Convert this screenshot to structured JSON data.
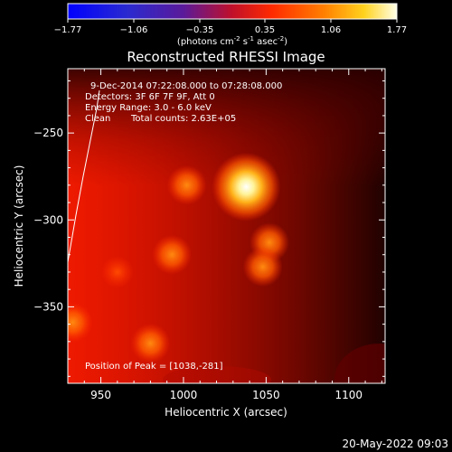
{
  "colorbar": {
    "ticks": [
      "-1.77",
      "-1.06",
      "-0.35",
      "0.35",
      "1.06",
      "1.77"
    ],
    "units_main": "(photons cm",
    "units_exp1": "-2",
    "units_mid1": " s",
    "units_exp2": "-1",
    "units_mid2": " asec",
    "units_exp3": "-2",
    "units_close": ")"
  },
  "annotations": {
    "time_range": "9-Dec-2014 07:22:08.000 to 07:28:08.000",
    "detectors": "Detectors: 3F 6F 7F 9F, Att 0",
    "energy": "Energy Range: 3.0 - 6.0 keV",
    "method": "Clean",
    "counts": "Total counts: 2.63E+05",
    "peak": "Position of Peak = [1038,-281]"
  },
  "footer": {
    "date": "20-May-2022 09:03"
  },
  "chart_data": {
    "type": "heatmap",
    "title": "Reconstructed RHESSI Image",
    "xlabel": "Heliocentric X (arcsec)",
    "ylabel": "Heliocentric Y (arcsec)",
    "xlim": [
      930,
      1122
    ],
    "ylim": [
      -394,
      -213
    ],
    "x_ticks": [
      950,
      1000,
      1050,
      1100
    ],
    "y_ticks": [
      -250,
      -300,
      -350
    ],
    "x_tick_labels": [
      "950",
      "1000",
      "1050",
      "1100"
    ],
    "y_tick_labels": [
      "−250",
      "−300",
      "−350"
    ],
    "colorbar_range": [
      -1.77,
      1.77
    ],
    "peak": [
      1038,
      -281
    ],
    "sources": [
      {
        "x": 1038,
        "y": -281,
        "intensity": 1.77
      },
      {
        "x": 1002,
        "y": -280,
        "intensity": 0.95
      },
      {
        "x": 1052,
        "y": -313,
        "intensity": 0.95
      },
      {
        "x": 1048,
        "y": -327,
        "intensity": 0.9
      },
      {
        "x": 993,
        "y": -320,
        "intensity": 0.9
      },
      {
        "x": 980,
        "y": -371,
        "intensity": 1.0
      },
      {
        "x": 933,
        "y": -359,
        "intensity": 1.05
      },
      {
        "x": 960,
        "y": -330,
        "intensity": 0.35
      }
    ],
    "colors": {
      "background": "#000000",
      "text": "#ffffff",
      "low": "#1a1aff",
      "mid_low": "#7b1fbf",
      "mid": "#ff2a00",
      "high": "#ffffff"
    }
  }
}
